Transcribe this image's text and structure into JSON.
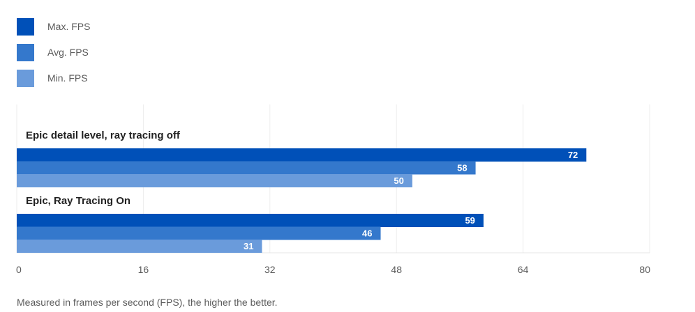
{
  "legend": [
    {
      "label": "Max. FPS",
      "color": "#0050b8"
    },
    {
      "label": "Avg. FPS",
      "color": "#3478cc"
    },
    {
      "label": "Min. FPS",
      "color": "#6a9bdb"
    }
  ],
  "chart_data": {
    "type": "bar",
    "orientation": "horizontal",
    "categories": [
      "Epic detail level, ray tracing off",
      "Epic, Ray Tracing On"
    ],
    "series": [
      {
        "name": "Max. FPS",
        "values": [
          72,
          59
        ],
        "color": "#0050b8"
      },
      {
        "name": "Avg. FPS",
        "values": [
          58,
          46
        ],
        "color": "#3478cc"
      },
      {
        "name": "Min. FPS",
        "values": [
          50,
          31
        ],
        "color": "#6a9bdb"
      }
    ],
    "xlim": [
      0,
      80
    ],
    "xticks": [
      0,
      16,
      32,
      48,
      64,
      80
    ],
    "grid": true,
    "legend_position": "top-left"
  },
  "footnote": "Measured in frames per second (FPS), the higher the better."
}
